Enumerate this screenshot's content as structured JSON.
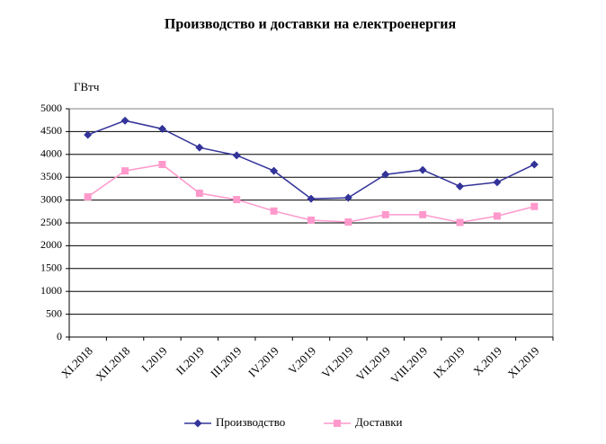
{
  "chart_data": {
    "type": "line",
    "title": "Производство и доставки на електроенергия",
    "y_label": "ГВтч",
    "categories": [
      "XI.2018",
      "XII.2018",
      "I.2019",
      "II.2019",
      "III.2019",
      "IV.2019",
      "V.2019",
      "VI.2019",
      "VII.2019",
      "VIII.2019",
      "IX.2019",
      "X.2019",
      "XI.2019"
    ],
    "series": [
      {
        "name": "Производство",
        "color": "#333399",
        "marker": "diamond",
        "values": [
          4430,
          4740,
          4560,
          4150,
          3980,
          3640,
          3030,
          3050,
          3560,
          3660,
          3300,
          3390,
          3780
        ]
      },
      {
        "name": "Доставки",
        "color": "#ff99cc",
        "marker": "square",
        "values": [
          3070,
          3640,
          3780,
          3150,
          3010,
          2760,
          2560,
          2520,
          2680,
          2680,
          2510,
          2650,
          2860
        ]
      }
    ],
    "ylim": [
      0,
      5000
    ],
    "yticks": [
      0,
      500,
      1000,
      1500,
      2000,
      2500,
      3000,
      3500,
      4000,
      4500,
      5000
    ],
    "grid": true,
    "legend": "bottom"
  }
}
